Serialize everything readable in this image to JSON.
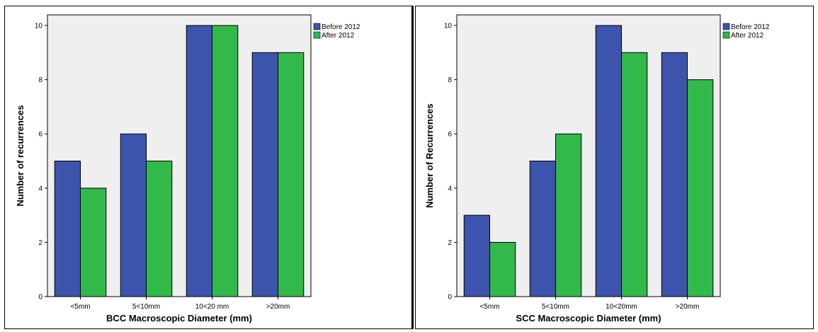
{
  "chart_data": [
    {
      "type": "bar",
      "title": "",
      "xlabel": "BCC Macroscopic Diameter (mm)",
      "ylabel": "Number of recurrences",
      "categories": [
        "<5mm",
        "5<10mm",
        "10<20 mm",
        ">20mm"
      ],
      "series": [
        {
          "name": "Before 2012",
          "values": [
            5,
            6,
            10,
            9
          ]
        },
        {
          "name": "After 2012",
          "values": [
            4,
            5,
            10,
            9
          ]
        }
      ],
      "ylim": [
        0,
        10
      ],
      "yticks": [
        0,
        2,
        4,
        6,
        8,
        10
      ],
      "grid": false,
      "legend": "top-right",
      "colors": {
        "before": "#3d54ad",
        "after": "#31b94a",
        "plot_bg": "#efefef"
      }
    },
    {
      "type": "bar",
      "title": "",
      "xlabel": "SCC Macroscopic Diameter (mm)",
      "ylabel": "Number of Recurrences",
      "categories": [
        "<5mm",
        "5<10mm",
        "10<20mm",
        ">20mm"
      ],
      "series": [
        {
          "name": "Before 2012",
          "values": [
            3,
            5,
            10,
            9
          ]
        },
        {
          "name": "After 2012",
          "values": [
            2,
            6,
            9,
            8
          ]
        }
      ],
      "ylim": [
        0,
        10
      ],
      "yticks": [
        0,
        2,
        4,
        6,
        8,
        10
      ],
      "grid": false,
      "legend": "top-right",
      "colors": {
        "before": "#3d54ad",
        "after": "#31b94a",
        "plot_bg": "#efefef"
      }
    }
  ]
}
